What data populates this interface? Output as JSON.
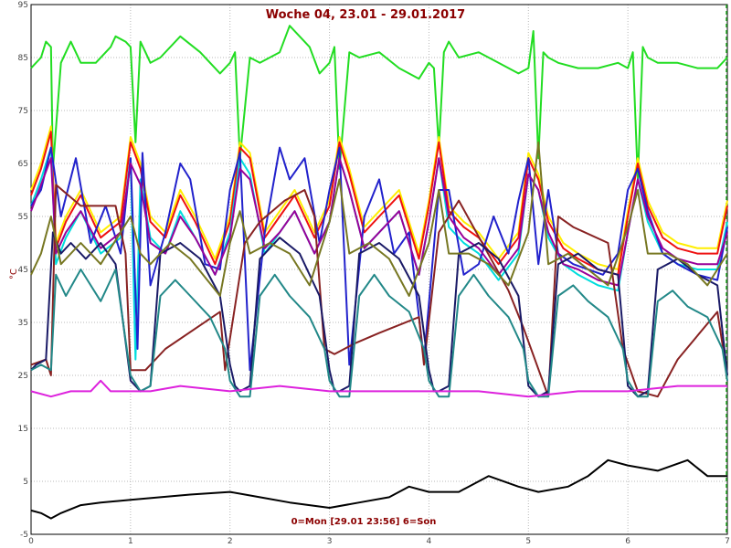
{
  "chart_data": {
    "type": "line",
    "title": "Woche 04, 23.01 - 29.01.2017",
    "footer": "0=Mon [29.01 23:56] 6=Son",
    "ylabel": "°C",
    "ylim": [
      -5,
      95
    ],
    "xlim": [
      0,
      7
    ],
    "yticks": [
      "-5",
      "5",
      "15",
      "25",
      "35",
      "45",
      "55",
      "65",
      "75",
      "85",
      "95"
    ],
    "xticks": [
      "0",
      "1",
      "2",
      "3",
      "4",
      "5",
      "6",
      "7"
    ],
    "grid": true,
    "series": [
      {
        "color": "#22dd22",
        "x": [
          0,
          0.1,
          0.15,
          0.2,
          0.22,
          0.3,
          0.4,
          0.5,
          0.65,
          0.8,
          0.85,
          0.95,
          1.0,
          1.05,
          1.1,
          1.15,
          1.2,
          1.3,
          1.5,
          1.7,
          1.9,
          2.0,
          2.05,
          2.1,
          2.2,
          2.3,
          2.5,
          2.6,
          2.8,
          2.9,
          3.0,
          3.05,
          3.1,
          3.2,
          3.3,
          3.5,
          3.7,
          3.9,
          4.0,
          4.05,
          4.1,
          4.15,
          4.2,
          4.3,
          4.5,
          4.7,
          4.9,
          5.0,
          5.05,
          5.1,
          5.15,
          5.2,
          5.3,
          5.5,
          5.7,
          5.9,
          6.0,
          6.05,
          6.1,
          6.15,
          6.2,
          6.3,
          6.5,
          6.7,
          6.9,
          7.0
        ],
        "y": [
          83,
          85,
          88,
          87,
          64,
          84,
          88,
          84,
          84,
          87,
          89,
          88,
          87,
          69,
          88,
          86,
          84,
          85,
          89,
          86,
          82,
          84,
          86,
          66,
          85,
          84,
          86,
          91,
          87,
          82,
          84,
          87,
          64,
          86,
          85,
          86,
          83,
          81,
          84,
          83,
          68,
          86,
          88,
          85,
          86,
          84,
          82,
          83,
          90,
          66,
          86,
          85,
          84,
          83,
          83,
          84,
          83,
          86,
          62,
          87,
          85,
          84,
          84,
          83,
          83,
          85
        ]
      },
      {
        "color": "#ffee00",
        "x": [
          0,
          0.1,
          0.2,
          0.25,
          0.35,
          0.5,
          0.7,
          0.9,
          1.0,
          1.1,
          1.2,
          1.35,
          1.5,
          1.65,
          1.85,
          2.0,
          2.1,
          2.2,
          2.35,
          2.5,
          2.65,
          2.85,
          3.0,
          3.1,
          3.2,
          3.35,
          3.5,
          3.7,
          3.9,
          4.0,
          4.1,
          4.2,
          4.35,
          4.5,
          4.7,
          4.9,
          5.0,
          5.1,
          5.2,
          5.35,
          5.5,
          5.7,
          5.9,
          6.0,
          6.1,
          6.2,
          6.35,
          6.5,
          6.7,
          6.9,
          7.0
        ],
        "y": [
          60,
          65,
          72,
          50,
          55,
          60,
          52,
          55,
          70,
          65,
          55,
          52,
          60,
          55,
          47,
          55,
          69,
          67,
          52,
          56,
          60,
          52,
          58,
          70,
          64,
          53,
          56,
          60,
          48,
          58,
          70,
          57,
          54,
          52,
          47,
          52,
          67,
          63,
          55,
          50,
          48,
          46,
          45,
          56,
          66,
          58,
          52,
          50,
          49,
          49,
          58
        ]
      },
      {
        "color": "#ee1111",
        "x": [
          0,
          0.1,
          0.2,
          0.25,
          0.35,
          0.5,
          0.7,
          0.9,
          1.0,
          1.1,
          1.2,
          1.35,
          1.5,
          1.65,
          1.85,
          2.0,
          2.1,
          2.2,
          2.35,
          2.5,
          2.65,
          2.85,
          3.0,
          3.1,
          3.2,
          3.35,
          3.5,
          3.7,
          3.9,
          4.0,
          4.1,
          4.2,
          4.35,
          4.5,
          4.7,
          4.9,
          5.0,
          5.1,
          5.2,
          5.35,
          5.5,
          5.7,
          5.9,
          6.0,
          6.1,
          6.2,
          6.35,
          6.5,
          6.7,
          6.9,
          7.0
        ],
        "y": [
          59,
          64,
          71,
          49,
          54,
          59,
          51,
          54,
          69,
          64,
          54,
          51,
          59,
          54,
          46,
          54,
          68,
          66,
          51,
          55,
          59,
          51,
          57,
          69,
          63,
          52,
          55,
          59,
          47,
          57,
          69,
          56,
          53,
          51,
          46,
          51,
          66,
          62,
          54,
          49,
          47,
          45,
          44,
          55,
          65,
          57,
          51,
          49,
          48,
          48,
          57
        ]
      },
      {
        "color": "#00dddd",
        "x": [
          0,
          0.1,
          0.2,
          0.25,
          0.35,
          0.5,
          0.7,
          0.9,
          1.0,
          1.05,
          1.1,
          1.2,
          1.35,
          1.5,
          1.65,
          1.85,
          2.0,
          2.1,
          2.2,
          2.35,
          2.5,
          2.65,
          2.85,
          3.0,
          3.1,
          3.2,
          3.35,
          3.5,
          3.7,
          3.9,
          4.0,
          4.1,
          4.2,
          4.35,
          4.5,
          4.7,
          4.9,
          5.0,
          5.1,
          5.2,
          5.35,
          5.5,
          5.7,
          5.9,
          6.0,
          6.1,
          6.2,
          6.35,
          6.5,
          6.7,
          6.9,
          7.0
        ],
        "y": [
          57,
          62,
          68,
          46,
          51,
          56,
          48,
          51,
          66,
          28,
          62,
          51,
          48,
          56,
          51,
          44,
          52,
          66,
          63,
          48,
          52,
          56,
          48,
          54,
          66,
          60,
          49,
          52,
          56,
          44,
          54,
          66,
          53,
          50,
          48,
          43,
          48,
          63,
          60,
          51,
          46,
          44,
          42,
          41,
          52,
          62,
          54,
          48,
          46,
          45,
          45,
          54
        ]
      },
      {
        "color": "#2222cc",
        "x": [
          0,
          0.1,
          0.2,
          0.3,
          0.45,
          0.6,
          0.75,
          0.9,
          1.0,
          1.07,
          1.12,
          1.2,
          1.35,
          1.5,
          1.6,
          1.75,
          1.9,
          2.0,
          2.1,
          2.2,
          2.35,
          2.5,
          2.6,
          2.75,
          2.9,
          3.0,
          3.1,
          3.2,
          3.35,
          3.5,
          3.65,
          3.8,
          3.95,
          4.1,
          4.2,
          4.35,
          4.5,
          4.65,
          4.8,
          4.9,
          5.0,
          5.1,
          5.2,
          5.3,
          5.45,
          5.6,
          5.75,
          5.9,
          6.0,
          6.1,
          6.2,
          6.35,
          6.5,
          6.7,
          6.9,
          7.0
        ],
        "y": [
          57,
          60,
          68,
          55,
          66,
          50,
          57,
          48,
          66,
          30,
          67,
          42,
          52,
          65,
          62,
          46,
          45,
          60,
          67,
          26,
          52,
          68,
          62,
          66,
          50,
          60,
          68,
          27,
          55,
          62,
          48,
          52,
          28,
          60,
          60,
          44,
          46,
          55,
          48,
          58,
          66,
          46,
          60,
          48,
          46,
          45,
          44,
          48,
          60,
          64,
          56,
          48,
          46,
          44,
          43,
          53
        ]
      },
      {
        "color": "#990099",
        "x": [
          0,
          0.1,
          0.2,
          0.25,
          0.35,
          0.5,
          0.7,
          0.9,
          1.0,
          1.1,
          1.2,
          1.35,
          1.5,
          1.65,
          1.85,
          2.0,
          2.1,
          2.2,
          2.35,
          2.5,
          2.65,
          2.85,
          3.0,
          3.1,
          3.2,
          3.35,
          3.5,
          3.7,
          3.9,
          4.0,
          4.1,
          4.2,
          4.35,
          4.5,
          4.7,
          4.9,
          5.0,
          5.1,
          5.2,
          5.35,
          5.5,
          5.7,
          5.9,
          6.0,
          6.1,
          6.2,
          6.35,
          6.5,
          6.7,
          6.9,
          7.0
        ],
        "y": [
          56,
          61,
          66,
          48,
          52,
          56,
          49,
          52,
          65,
          61,
          50,
          48,
          55,
          51,
          44,
          51,
          64,
          62,
          49,
          52,
          56,
          48,
          54,
          66,
          60,
          49,
          52,
          56,
          44,
          54,
          66,
          55,
          51,
          49,
          44,
          49,
          63,
          60,
          52,
          46,
          45,
          43,
          42,
          52,
          62,
          55,
          49,
          47,
          46,
          46,
          52
        ]
      },
      {
        "color": "#882222",
        "x": [
          0,
          0.15,
          0.2,
          0.25,
          0.5,
          0.85,
          0.95,
          1.0,
          1.15,
          1.35,
          1.9,
          1.95,
          2.15,
          2.3,
          2.55,
          2.75,
          2.85,
          2.95,
          3.05,
          3.25,
          3.5,
          3.9,
          3.95,
          4.1,
          4.3,
          4.8,
          4.95,
          5.2,
          5.3,
          5.45,
          5.8,
          5.95,
          6.1,
          6.3,
          6.5,
          6.9,
          7.0
        ],
        "y": [
          27,
          28,
          25,
          61,
          57,
          57,
          48,
          26,
          26,
          30,
          37,
          26,
          50,
          54,
          58,
          60,
          55,
          30,
          29,
          31,
          33,
          36,
          27,
          52,
          58,
          41,
          34,
          21,
          55,
          53,
          50,
          30,
          22,
          21,
          28,
          37,
          25
        ]
      },
      {
        "color": "#1a1a66",
        "x": [
          0,
          0.05,
          0.15,
          0.22,
          0.3,
          0.4,
          0.55,
          0.7,
          0.85,
          1.0,
          1.05,
          1.1,
          1.2,
          1.3,
          1.5,
          1.7,
          1.9,
          2.0,
          2.05,
          2.1,
          2.2,
          2.3,
          2.5,
          2.7,
          2.9,
          3.0,
          3.05,
          3.1,
          3.2,
          3.3,
          3.5,
          3.7,
          3.9,
          4.0,
          4.05,
          4.1,
          4.2,
          4.3,
          4.5,
          4.7,
          4.9,
          5.0,
          5.05,
          5.1,
          5.2,
          5.3,
          5.5,
          5.7,
          5.9,
          6.0,
          6.05,
          6.1,
          6.2,
          6.3,
          6.5,
          6.7,
          6.9,
          7.0
        ],
        "y": [
          26,
          27,
          28,
          52,
          48,
          50,
          47,
          50,
          46,
          24,
          23,
          22,
          23,
          48,
          50,
          47,
          40,
          27,
          23,
          22,
          23,
          47,
          51,
          48,
          40,
          26,
          22,
          22,
          23,
          48,
          50,
          47,
          40,
          26,
          22,
          22,
          23,
          48,
          50,
          47,
          40,
          23,
          22,
          21,
          22,
          46,
          48,
          45,
          44,
          23,
          22,
          21,
          22,
          45,
          47,
          44,
          42,
          25
        ]
      },
      {
        "color": "#228888",
        "x": [
          0,
          0.1,
          0.2,
          0.25,
          0.35,
          0.5,
          0.7,
          0.85,
          1.0,
          1.1,
          1.2,
          1.3,
          1.45,
          1.6,
          1.8,
          1.95,
          2.0,
          2.1,
          2.2,
          2.3,
          2.45,
          2.6,
          2.8,
          2.95,
          3.0,
          3.1,
          3.2,
          3.3,
          3.45,
          3.6,
          3.8,
          3.95,
          4.0,
          4.1,
          4.2,
          4.3,
          4.45,
          4.6,
          4.8,
          4.95,
          5.0,
          5.1,
          5.2,
          5.3,
          5.45,
          5.6,
          5.8,
          5.95,
          6.0,
          6.1,
          6.2,
          6.3,
          6.45,
          6.6,
          6.8,
          6.95,
          7.0
        ],
        "y": [
          26,
          27,
          26,
          44,
          40,
          45,
          39,
          45,
          25,
          22,
          23,
          40,
          43,
          40,
          36,
          30,
          24,
          21,
          21,
          40,
          44,
          40,
          36,
          30,
          24,
          21,
          21,
          40,
          44,
          40,
          37,
          30,
          24,
          21,
          21,
          40,
          44,
          40,
          36,
          30,
          24,
          21,
          21,
          40,
          42,
          39,
          36,
          30,
          24,
          21,
          21,
          39,
          41,
          38,
          36,
          30,
          24
        ]
      },
      {
        "color": "#777722",
        "x": [
          0,
          0.1,
          0.2,
          0.3,
          0.5,
          0.7,
          0.9,
          1.0,
          1.1,
          1.2,
          1.4,
          1.6,
          1.9,
          2.0,
          2.1,
          2.2,
          2.4,
          2.6,
          2.8,
          3.0,
          3.1,
          3.2,
          3.4,
          3.6,
          3.8,
          4.0,
          4.1,
          4.2,
          4.4,
          4.6,
          4.8,
          5.0,
          5.1,
          5.2,
          5.4,
          5.6,
          5.8,
          6.0,
          6.1,
          6.2,
          6.4,
          6.6,
          6.8,
          7.0
        ],
        "y": [
          44,
          48,
          55,
          46,
          50,
          46,
          52,
          55,
          48,
          46,
          50,
          47,
          40,
          50,
          56,
          48,
          50,
          48,
          42,
          54,
          62,
          48,
          50,
          47,
          40,
          50,
          60,
          48,
          48,
          46,
          42,
          52,
          69,
          46,
          48,
          45,
          42,
          53,
          60,
          48,
          48,
          46,
          42,
          48
        ]
      },
      {
        "color": "#dd22dd",
        "x": [
          0,
          0.2,
          0.4,
          0.6,
          0.7,
          0.8,
          1.0,
          1.2,
          1.5,
          2.0,
          2.5,
          3.0,
          3.5,
          4.0,
          4.5,
          5.0,
          5.5,
          6.0,
          6.5,
          7.0
        ],
        "y": [
          22,
          21,
          22,
          22,
          24,
          22,
          22,
          22,
          23,
          22,
          23,
          22,
          22,
          22,
          22,
          21,
          22,
          22,
          23,
          23
        ]
      },
      {
        "color": "#000000",
        "x": [
          0,
          0.1,
          0.2,
          0.3,
          0.5,
          0.7,
          1.0,
          1.3,
          1.6,
          2.0,
          2.3,
          2.6,
          3.0,
          3.3,
          3.6,
          3.8,
          4.0,
          4.3,
          4.6,
          4.9,
          5.1,
          5.4,
          5.6,
          5.8,
          6.0,
          6.3,
          6.6,
          6.8,
          7.0
        ],
        "y": [
          -0.5,
          -1,
          -2,
          -1,
          0.5,
          1,
          1.5,
          2,
          2.5,
          3,
          2,
          1,
          0,
          1,
          2,
          4,
          3,
          3,
          6,
          4,
          3,
          4,
          6,
          9,
          8,
          7,
          9,
          6,
          6
        ]
      }
    ]
  }
}
